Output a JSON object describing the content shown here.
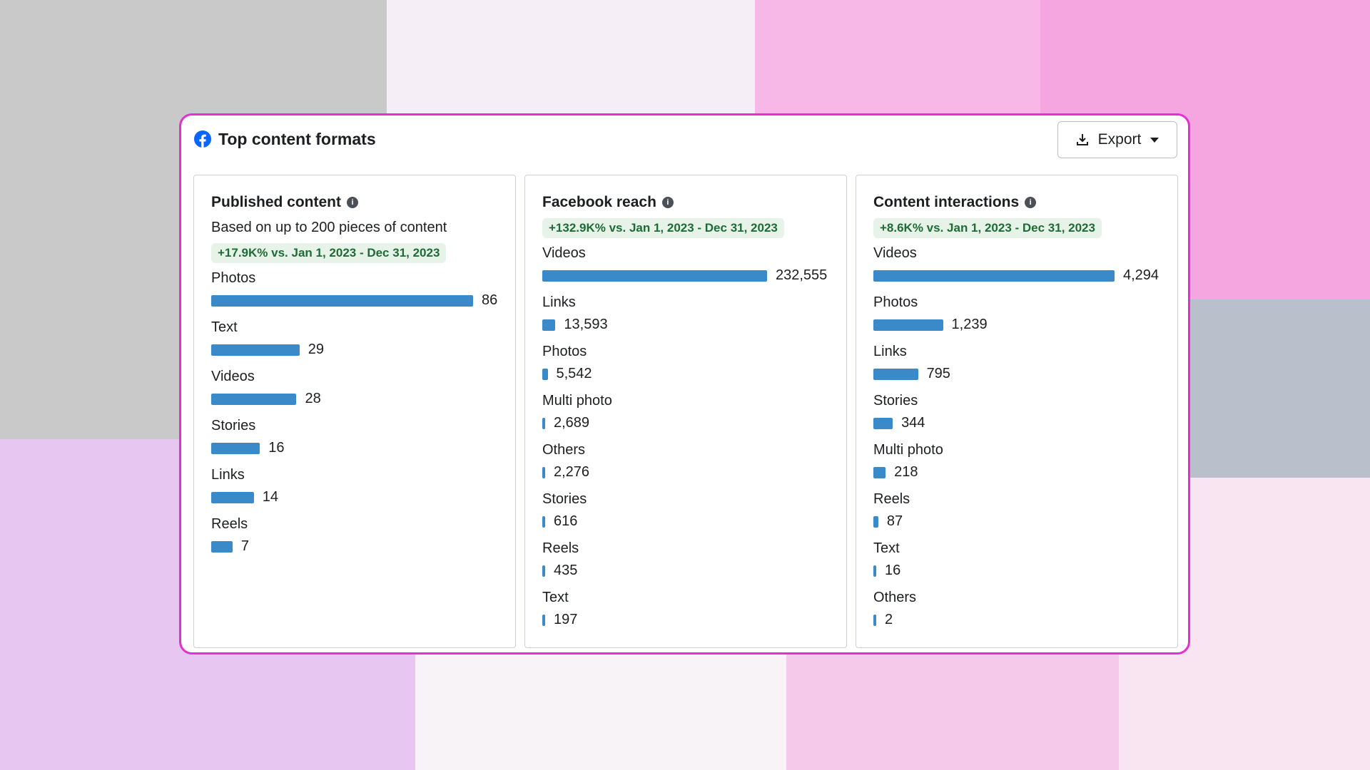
{
  "panel": {
    "title": "Top content formats",
    "export_button": "Export"
  },
  "cards": [
    {
      "title": "Published content",
      "subtitle": "Based on up to 200 pieces of content",
      "badge": "+17.9K% vs. Jan 1, 2023 - Dec 31, 2023",
      "items": [
        {
          "label": "Photos",
          "value": 86,
          "value_label": "86"
        },
        {
          "label": "Text",
          "value": 29,
          "value_label": "29"
        },
        {
          "label": "Videos",
          "value": 28,
          "value_label": "28"
        },
        {
          "label": "Stories",
          "value": 16,
          "value_label": "16"
        },
        {
          "label": "Links",
          "value": 14,
          "value_label": "14"
        },
        {
          "label": "Reels",
          "value": 7,
          "value_label": "7"
        }
      ]
    },
    {
      "title": "Facebook reach",
      "badge": "+132.9K% vs. Jan 1, 2023 - Dec 31, 2023",
      "items": [
        {
          "label": "Videos",
          "value": 232555,
          "value_label": "232,555"
        },
        {
          "label": "Links",
          "value": 13593,
          "value_label": "13,593"
        },
        {
          "label": "Photos",
          "value": 5542,
          "value_label": "5,542"
        },
        {
          "label": "Multi photo",
          "value": 2689,
          "value_label": "2,689"
        },
        {
          "label": "Others",
          "value": 2276,
          "value_label": "2,276"
        },
        {
          "label": "Stories",
          "value": 616,
          "value_label": "616"
        },
        {
          "label": "Reels",
          "value": 435,
          "value_label": "435"
        },
        {
          "label": "Text",
          "value": 197,
          "value_label": "197"
        }
      ]
    },
    {
      "title": "Content interactions",
      "badge": "+8.6K% vs. Jan 1, 2023 - Dec 31, 2023",
      "items": [
        {
          "label": "Videos",
          "value": 4294,
          "value_label": "4,294"
        },
        {
          "label": "Photos",
          "value": 1239,
          "value_label": "1,239"
        },
        {
          "label": "Links",
          "value": 795,
          "value_label": "795"
        },
        {
          "label": "Stories",
          "value": 344,
          "value_label": "344"
        },
        {
          "label": "Multi photo",
          "value": 218,
          "value_label": "218"
        },
        {
          "label": "Reels",
          "value": 87,
          "value_label": "87"
        },
        {
          "label": "Text",
          "value": 16,
          "value_label": "16"
        },
        {
          "label": "Others",
          "value": 2,
          "value_label": "2"
        }
      ]
    }
  ],
  "bar_color": "#3a8ac9"
}
